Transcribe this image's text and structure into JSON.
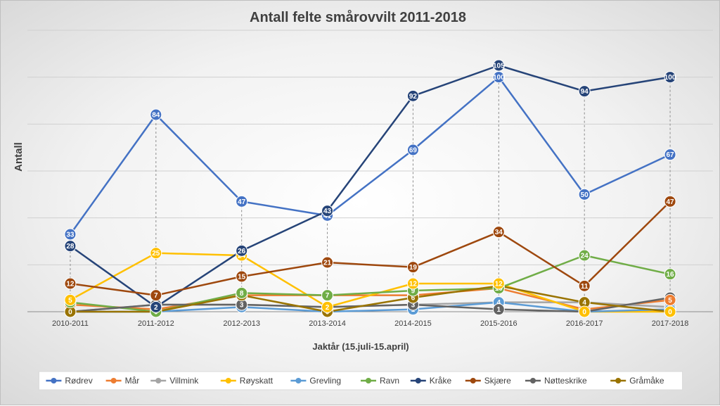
{
  "chart_data": {
    "type": "line",
    "title": "Antall felte smårovvilt 2011-2018",
    "xlabel": "Jaktår (15.juli-15.april)",
    "ylabel": "Antall",
    "ylim": [
      0,
      120
    ],
    "grid": true,
    "legend": "bottom",
    "categories": [
      "2010-2011",
      "2011-2012",
      "2012-2013",
      "2013-2014",
      "2014-2015",
      "2015-2016",
      "2016-2017",
      "2017-2018"
    ],
    "series": [
      {
        "name": "Rødrev",
        "color": "#4472C4",
        "values": [
          33,
          84,
          47,
          41,
          69,
          100,
          50,
          67
        ]
      },
      {
        "name": "Mår",
        "color": "#ED7D31",
        "values": [
          3,
          1,
          7,
          7,
          7,
          10,
          1,
          5
        ]
      },
      {
        "name": "Villmink",
        "color": "#A5A5A5",
        "values": [
          0,
          3,
          3,
          2,
          3,
          4,
          4,
          2
        ]
      },
      {
        "name": "Røyskatt",
        "color": "#FFC000",
        "values": [
          5,
          25,
          24,
          2,
          12,
          12,
          0,
          0
        ]
      },
      {
        "name": "Grevling",
        "color": "#5B9BD5",
        "values": [
          0,
          0,
          2,
          0,
          1,
          4,
          0,
          1
        ]
      },
      {
        "name": "Ravn",
        "color": "#70AD47",
        "values": [
          4,
          0,
          8,
          7,
          9,
          10,
          24,
          16
        ]
      },
      {
        "name": "Kråke",
        "color": "#264478",
        "values": [
          28,
          2,
          26,
          43,
          92,
          105,
          94,
          100
        ]
      },
      {
        "name": "Skjære",
        "color": "#9E480E",
        "values": [
          12,
          7,
          15,
          21,
          19,
          34,
          11,
          47
        ]
      },
      {
        "name": "Nøtteskrike",
        "color": "#636363",
        "values": [
          0,
          3,
          3,
          2,
          3,
          1,
          0,
          6
        ]
      },
      {
        "name": "Gråmåke",
        "color": "#997300",
        "values": [
          0,
          0,
          7,
          0,
          6,
          11,
          4,
          0
        ]
      }
    ]
  }
}
